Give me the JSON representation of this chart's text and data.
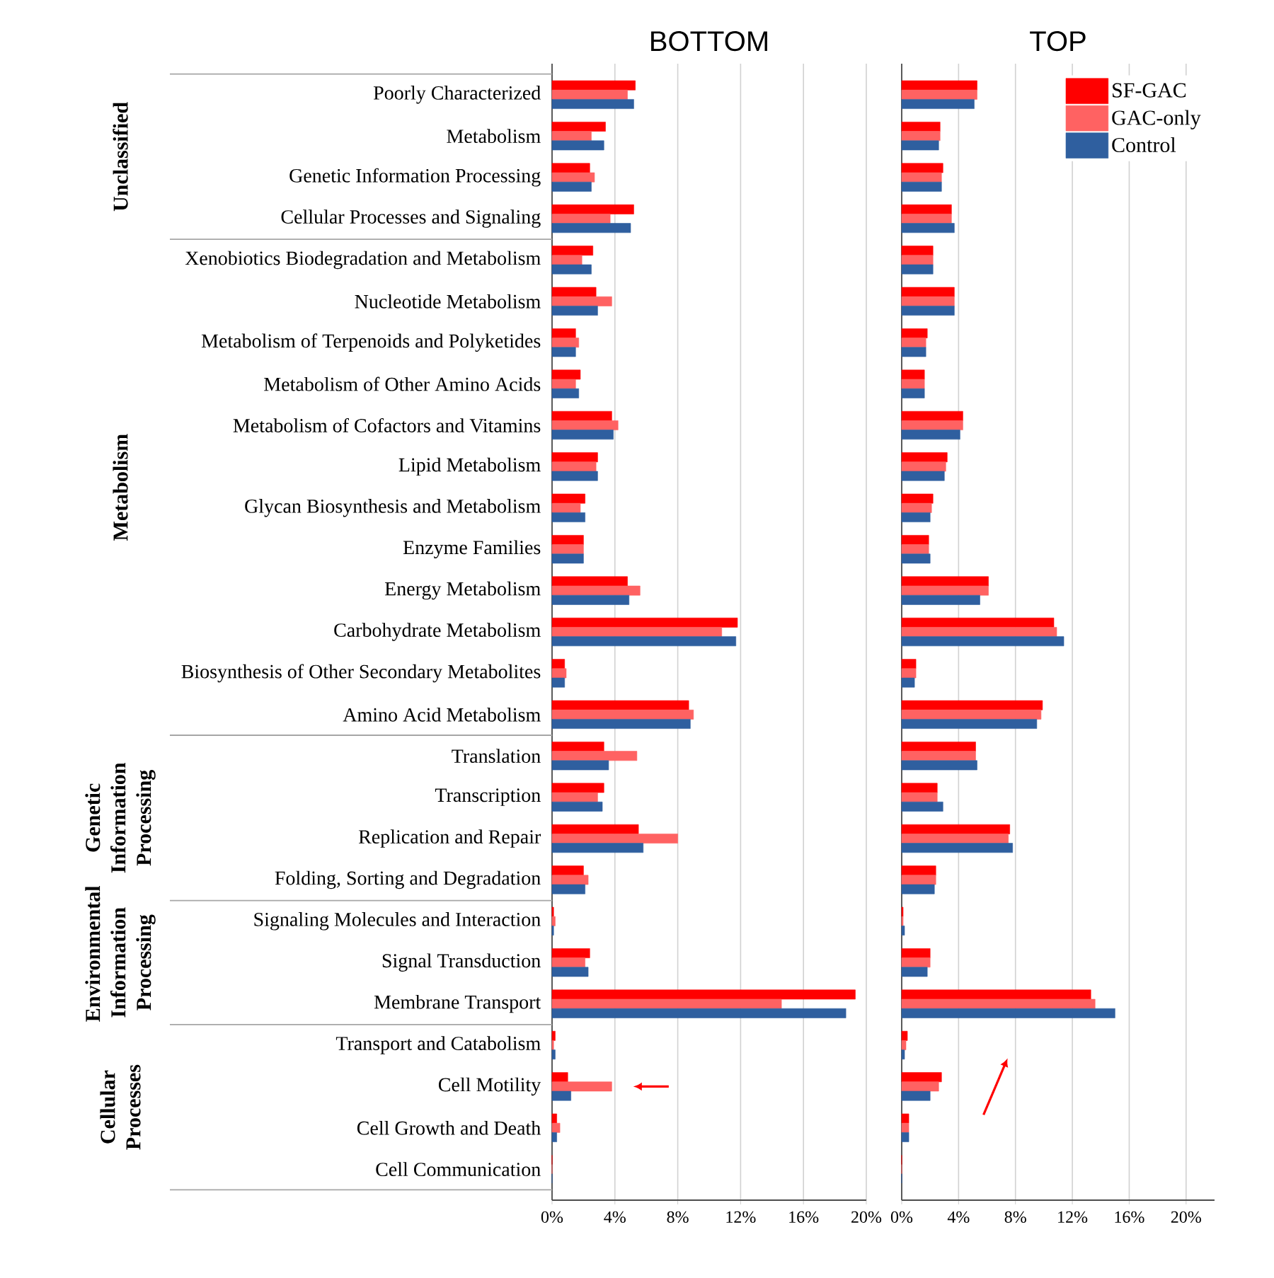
{
  "chart_data": [
    {
      "type": "bar",
      "orientation": "horizontal",
      "title": "BOTTOM",
      "categories": [
        "Poorly Characterized",
        "Metabolism",
        "Genetic Information Processing",
        "Cellular Processes and Signaling",
        "Xenobiotics Biodegradation and Metabolism",
        "Nucleotide Metabolism",
        "Metabolism of Terpenoids and Polyketides",
        "Metabolism of Other Amino Acids",
        "Metabolism of Cofactors and Vitamins",
        "Lipid Metabolism",
        "Glycan Biosynthesis and Metabolism",
        "Enzyme Families",
        "Energy Metabolism",
        "Carbohydrate Metabolism",
        "Biosynthesis of Other Secondary Metabolites",
        "Amino Acid Metabolism",
        "Translation",
        "Transcription",
        "Replication and Repair",
        "Folding, Sorting and Degradation",
        "Signaling Molecules and Interaction",
        "Signal Transduction",
        "Membrane Transport",
        "Transport and Catabolism",
        "Cell Motility",
        "Cell Growth and Death",
        "Cell Communication"
      ],
      "series": [
        {
          "color": "#ff0000",
          "values": [
            5.3,
            3.4,
            2.4,
            5.2,
            2.6,
            2.8,
            1.5,
            1.8,
            3.8,
            2.9,
            2.1,
            2.0,
            4.8,
            11.8,
            0.8,
            8.7,
            3.3,
            3.3,
            5.5,
            2.0,
            0.1,
            2.4,
            19.3,
            0.2,
            1.0,
            0.3,
            0
          ]
        },
        {
          "color": "#ff6262",
          "values": [
            4.8,
            2.5,
            2.7,
            3.7,
            1.9,
            3.8,
            1.7,
            1.5,
            4.2,
            2.8,
            1.8,
            2.0,
            5.6,
            10.8,
            0.9,
            9.0,
            5.4,
            2.9,
            8.0,
            2.3,
            0.2,
            2.1,
            14.6,
            0.1,
            3.8,
            0.5,
            0
          ]
        },
        {
          "color": "#2f5f9f",
          "values": [
            5.2,
            3.3,
            2.5,
            5.0,
            2.5,
            2.9,
            1.5,
            1.7,
            3.9,
            2.9,
            2.1,
            2.0,
            4.9,
            11.7,
            0.8,
            8.8,
            3.6,
            3.2,
            5.8,
            2.1,
            0.1,
            2.3,
            18.7,
            0.2,
            1.2,
            0.3,
            0
          ]
        }
      ],
      "xlim": [
        0,
        20
      ],
      "xticks": [
        {
          "value": 0,
          "label": "0%"
        },
        {
          "value": 4,
          "label": "4%"
        },
        {
          "value": 8,
          "label": "8%"
        },
        {
          "value": 12,
          "label": "12%"
        },
        {
          "value": 16,
          "label": "16%"
        },
        {
          "value": 20,
          "label": "20%"
        }
      ],
      "grid": "x",
      "annotations": [
        "Unclassified",
        "Metabolism",
        "Genetic Information Processing",
        "Environmental Information Processing",
        "Cellular Processes"
      ]
    },
    {
      "type": "bar",
      "orientation": "horizontal",
      "title": "TOP",
      "categories": [
        null,
        null,
        null,
        null,
        null,
        null,
        null,
        null,
        null,
        null,
        null,
        null,
        null,
        null,
        null,
        null,
        null,
        null,
        null,
        null,
        null,
        null,
        null,
        null,
        null,
        null,
        null
      ],
      "series": [
        {
          "name": "SF-GAC",
          "color": "#ff0000",
          "values": [
            5.3,
            2.7,
            2.9,
            3.5,
            2.2,
            3.7,
            1.8,
            1.6,
            4.3,
            3.2,
            2.2,
            1.9,
            6.1,
            10.7,
            1.0,
            9.9,
            5.2,
            2.5,
            7.6,
            2.4,
            0.1,
            2.0,
            13.3,
            0.4,
            2.8,
            0.5,
            0
          ]
        },
        {
          "name": "GAC-only",
          "color": "#ff6262",
          "values": [
            5.3,
            2.7,
            2.8,
            3.5,
            2.2,
            3.7,
            1.7,
            1.6,
            4.3,
            3.1,
            2.1,
            1.9,
            6.1,
            10.9,
            1.0,
            9.8,
            5.2,
            2.5,
            7.5,
            2.4,
            0.1,
            2.0,
            13.6,
            0.3,
            2.6,
            0.5,
            0
          ]
        },
        {
          "name": "Control",
          "color": "#2f5f9f",
          "values": [
            5.1,
            2.6,
            2.8,
            3.7,
            2.2,
            3.7,
            1.7,
            1.6,
            4.1,
            3.0,
            2.0,
            2.0,
            5.5,
            11.4,
            0.9,
            9.5,
            5.3,
            2.9,
            7.8,
            2.3,
            0.2,
            1.8,
            15.0,
            0.2,
            2.0,
            0.5,
            0
          ]
        }
      ],
      "xlim": [
        0,
        22
      ],
      "xticks": [
        {
          "value": 0,
          "label": "0%"
        },
        {
          "value": 4,
          "label": "4%"
        },
        {
          "value": 8,
          "label": "8%"
        },
        {
          "value": 12,
          "label": "12%"
        },
        {
          "value": 16,
          "label": "16%"
        },
        {
          "value": 20,
          "label": "20%"
        }
      ],
      "grid": "x",
      "legend": "top right",
      "tick_labels": "x"
    }
  ]
}
